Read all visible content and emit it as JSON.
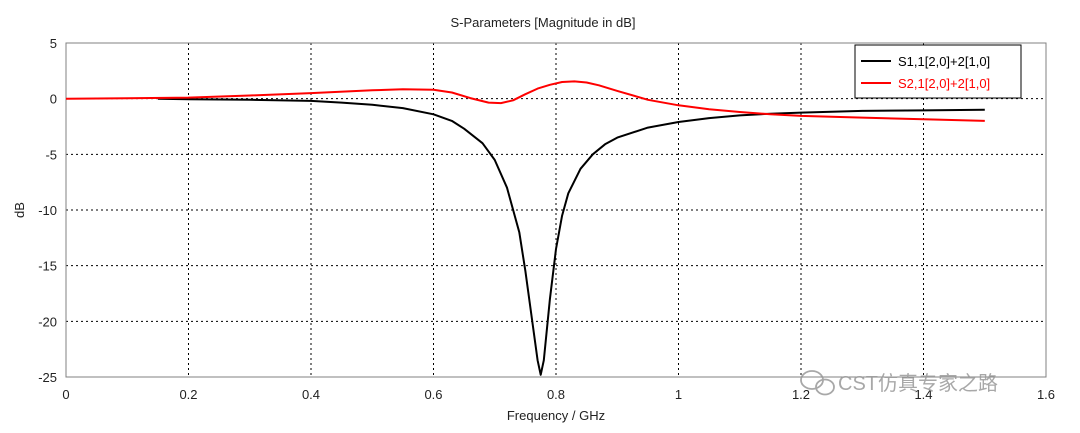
{
  "chart_data": {
    "type": "line",
    "title": "S-Parameters [Magnitude in dB]",
    "xlabel": "Frequency / GHz",
    "ylabel": "dB",
    "xlim": [
      0,
      1.6
    ],
    "ylim": [
      -25,
      5
    ],
    "xticks": [
      "0",
      "0.2",
      "0.4",
      "0.6",
      "0.8",
      "1",
      "1.2",
      "1.4",
      "1.6"
    ],
    "yticks": [
      "5",
      "0",
      "-5",
      "-10",
      "-15",
      "-20",
      "-25"
    ],
    "grid": true,
    "legend_position": "top-right",
    "series": [
      {
        "name": "S1,1[2,0]+2[1,0]",
        "color": "#000000",
        "x": [
          0.15,
          0.2,
          0.3,
          0.4,
          0.45,
          0.5,
          0.55,
          0.6,
          0.63,
          0.65,
          0.68,
          0.7,
          0.72,
          0.74,
          0.75,
          0.76,
          0.77,
          0.775,
          0.78,
          0.79,
          0.8,
          0.81,
          0.82,
          0.84,
          0.86,
          0.88,
          0.9,
          0.95,
          1.0,
          1.05,
          1.1,
          1.15,
          1.2,
          1.3,
          1.4,
          1.5
        ],
        "values": [
          0,
          -0.05,
          -0.1,
          -0.2,
          -0.35,
          -0.55,
          -0.85,
          -1.4,
          -2.0,
          -2.7,
          -4.0,
          -5.5,
          -8.0,
          -12.0,
          -15.5,
          -19.5,
          -23.5,
          -24.8,
          -23.5,
          -18.0,
          -13.5,
          -10.5,
          -8.5,
          -6.3,
          -5.0,
          -4.1,
          -3.5,
          -2.6,
          -2.1,
          -1.75,
          -1.5,
          -1.35,
          -1.25,
          -1.1,
          -1.05,
          -1.0
        ]
      },
      {
        "name": "S2,1[2,0]+2[1,0]",
        "color": "#ff0000",
        "x": [
          0,
          0.1,
          0.2,
          0.3,
          0.4,
          0.5,
          0.55,
          0.6,
          0.63,
          0.66,
          0.69,
          0.71,
          0.73,
          0.75,
          0.77,
          0.79,
          0.81,
          0.83,
          0.85,
          0.87,
          0.9,
          0.95,
          1.0,
          1.05,
          1.1,
          1.15,
          1.2,
          1.3,
          1.4,
          1.5
        ],
        "values": [
          0,
          0.03,
          0.1,
          0.28,
          0.5,
          0.75,
          0.85,
          0.8,
          0.55,
          0.05,
          -0.35,
          -0.4,
          -0.15,
          0.4,
          0.9,
          1.25,
          1.5,
          1.55,
          1.45,
          1.2,
          0.7,
          -0.1,
          -0.6,
          -0.95,
          -1.2,
          -1.4,
          -1.55,
          -1.7,
          -1.85,
          -2.0
        ]
      }
    ]
  },
  "watermark": "CST仿真专家之路",
  "colors": {
    "grid": "#000000",
    "axis": "#808080",
    "background": "#ffffff"
  }
}
